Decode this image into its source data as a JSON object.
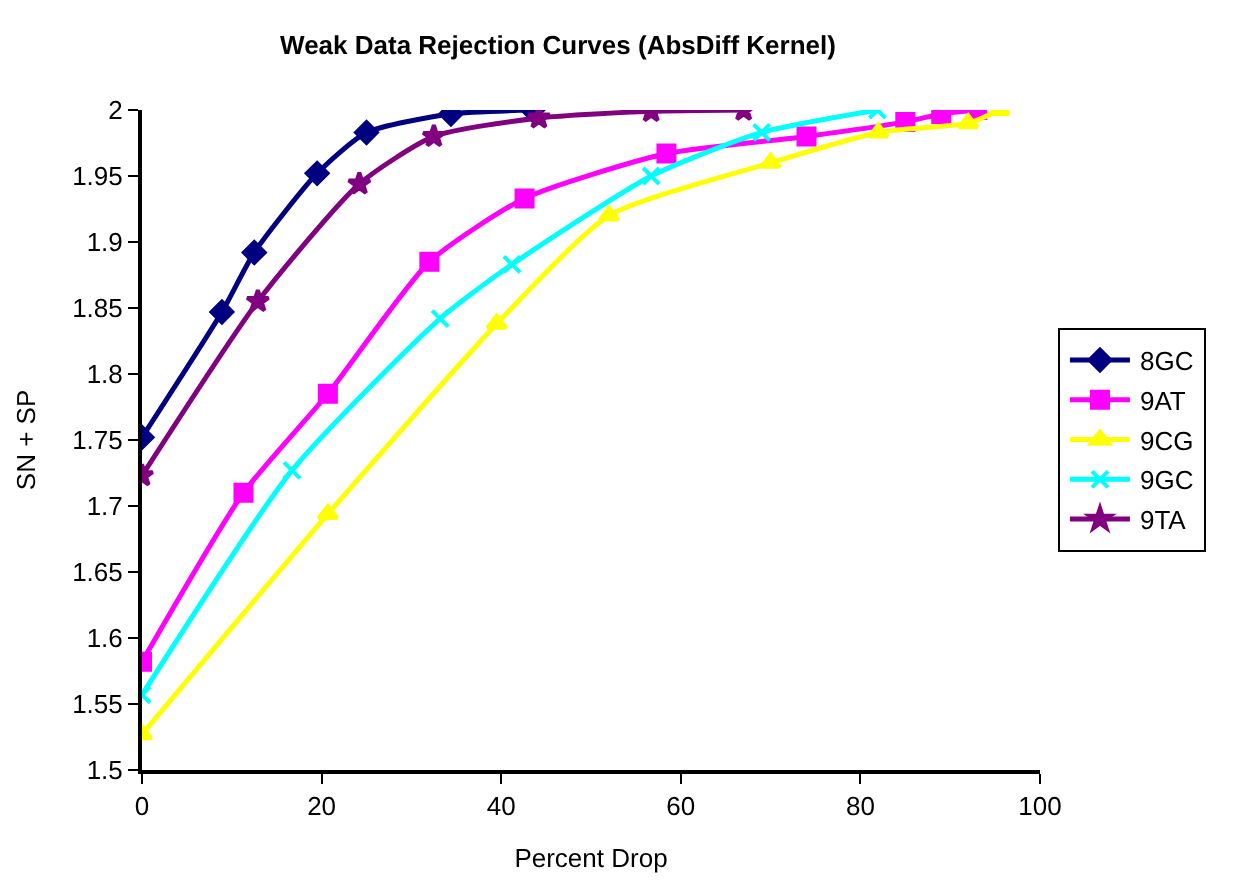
{
  "chart_data": {
    "type": "line",
    "title": "Weak Data Rejection Curves (AbsDiff Kernel)",
    "xlabel": "Percent Drop",
    "ylabel": "SN + SP",
    "xlim": [
      0,
      100
    ],
    "xticks": [
      0,
      20,
      40,
      60,
      80,
      100
    ],
    "ylim": [
      1.5,
      2
    ],
    "yticks": [
      {
        "value": 1.5,
        "label": "1.5"
      },
      1.55,
      {
        "value": 1.6,
        "label": "1.6"
      },
      1.65,
      {
        "value": 1.7,
        "label": "1.7"
      },
      1.75,
      {
        "value": 1.8,
        "label": "1.8"
      },
      1.85,
      {
        "value": 1.9,
        "label": "1.9"
      },
      1.95,
      {
        "value": 2,
        "label": "2"
      }
    ],
    "grid": false,
    "legend": "right",
    "line_style": "solid",
    "series": [
      {
        "name": "8GC",
        "color": "#000080",
        "marker": "diamond",
        "x": [
          0,
          8.9,
          12.5,
          19.5,
          25,
          34.4,
          43.5
        ],
        "values": [
          1.752,
          1.847,
          1.892,
          1.952,
          1.983,
          1.997,
          2.0
        ]
      },
      {
        "name": "9AT",
        "color": "#ff00ff",
        "marker": "square",
        "x": [
          0,
          11.3,
          20.7,
          32,
          42.6,
          58.4,
          74,
          85,
          89,
          93
        ],
        "values": [
          1.582,
          1.71,
          1.785,
          1.885,
          1.933,
          1.967,
          1.98,
          1.991,
          1.997,
          2.0
        ]
      },
      {
        "name": "9CG",
        "color": "#ffff00",
        "marker": "triangle",
        "x": [
          0,
          20.7,
          39.5,
          52,
          70,
          82,
          92,
          95.5
        ],
        "values": [
          1.527,
          1.694,
          1.838,
          1.92,
          1.96,
          1.983,
          1.99,
          2.0
        ]
      },
      {
        "name": "9GC",
        "color": "#00ffff",
        "marker": "cross",
        "x": [
          0,
          16.7,
          33.2,
          41.2,
          56.7,
          69,
          81.9
        ],
        "values": [
          1.557,
          1.727,
          1.842,
          1.883,
          1.95,
          1.983,
          2.0
        ]
      },
      {
        "name": "9TA",
        "color": "#800080",
        "marker": "star",
        "x": [
          0,
          12.9,
          24.2,
          32.5,
          44.2,
          56.7,
          67
        ],
        "values": [
          1.723,
          1.855,
          1.944,
          1.98,
          1.994,
          1.999,
          2.0
        ]
      }
    ]
  }
}
